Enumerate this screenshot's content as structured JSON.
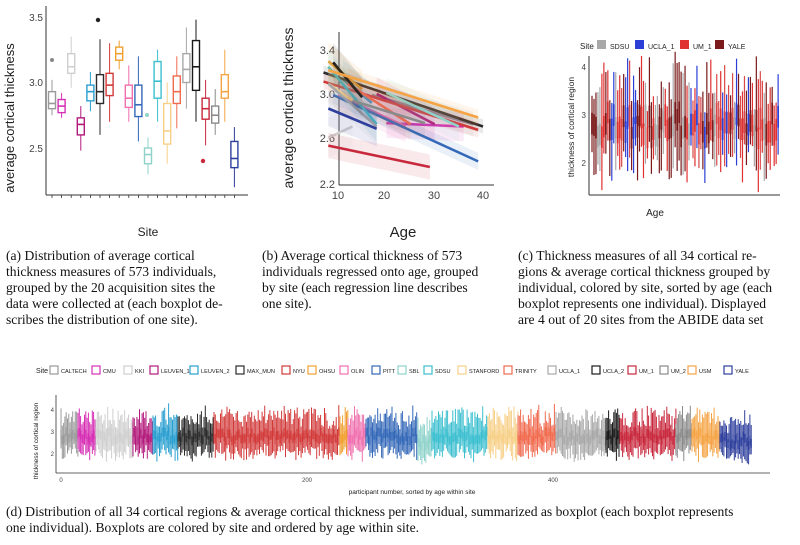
{
  "panel_a": {
    "ylabel": "average cortical thickness",
    "xlabel": "Site",
    "yticks": [
      "2.5",
      "3.0",
      "3.5"
    ],
    "caption": [
      "(a) Distribution of average cortical",
      "thickness measures of 573 individuals,",
      "grouped by the 20 acquisition sites the",
      "data were collected at (each boxplot de-",
      "scribes the distribution of one site)."
    ]
  },
  "panel_b": {
    "ylabel": "average cortical thickness",
    "xlabel": "Age",
    "yticks": [
      "2.2",
      "2.6",
      "3.0",
      "3.4"
    ],
    "xticks": [
      "10",
      "20",
      "30",
      "40"
    ],
    "caption": [
      "(b) Average cortical thickness of 573",
      "individuals regressed onto age, grouped",
      "by site (each regression line describes",
      "one site)."
    ]
  },
  "panel_c": {
    "ylabel": "thickness of cortical region",
    "xlabel": "Age",
    "yticks": [
      "2",
      "3",
      "4"
    ],
    "legend_title": "Site",
    "legend": [
      "SDSU",
      "UCLA_1",
      "UM_1",
      "YALE"
    ],
    "caption": [
      "(c) Thickness measures of all 34 cortical re-",
      "gions & average cortical thickness grouped by",
      "individual, colored by site, sorted by age (each",
      "boxplot represents one individual). Displayed",
      "are 4 out of 20 sites from the ABIDE data set"
    ]
  },
  "panel_d": {
    "ylabel": "thickness of cortical region",
    "xlabel": "participant number, sorted by age within site",
    "yticks": [
      "2",
      "3",
      "4"
    ],
    "xticks": [
      "0",
      "200",
      "400"
    ],
    "legend_title": "Site",
    "legend": [
      "CALTECH",
      "CMU",
      "KKI",
      "LEUVEN_1",
      "LEUVEN_2",
      "MAX_MUN",
      "NYU",
      "OHSU",
      "OLIN",
      "PITT",
      "SBL",
      "SDSU",
      "STANFORD",
      "TRINITY",
      "UCLA_1",
      "UCLA_2",
      "UM_1",
      "UM_2",
      "USM",
      "YALE"
    ],
    "caption": [
      "(d) Distribution of all 34 cortical regions & average cortical thickness per individual, summarized as boxplot (each boxplot represents",
      "one individual). Boxplots are colored by site and ordered by age within site."
    ]
  },
  "colors": {
    "CALTECH": "#9a9a9a",
    "CMU": "#d62fb4",
    "KKI": "#cfcfcf",
    "LEUVEN_1": "#b2197b",
    "LEUVEN_2": "#2a9fd0",
    "MAX_MUN": "#2b2b2b",
    "NYU": "#d23a3a",
    "OHSU": "#f0a030",
    "OLIN": "#f06fae",
    "PITT": "#3468b8",
    "SBL": "#8fd3cb",
    "SDSU": "#3cbfcf",
    "STANFORD": "#f7d088",
    "TRINITY": "#f06a4e",
    "UCLA_1": "#a8a8a8",
    "UCLA_2": "#1a1a1a",
    "UM_1": "#c8283c",
    "UM_2": "#8a8a8a",
    "USM": "#f5a445",
    "YALE": "#2e3f9c"
  },
  "chart_data": [
    {
      "type": "box",
      "ylabel": "average cortical thickness",
      "xlabel": "Site",
      "ylim": [
        2.2,
        3.55
      ],
      "boxes": [
        {
          "site": "CALTECH",
          "q1": 2.8,
          "median": 2.84,
          "q3": 2.93,
          "lo": 2.75,
          "hi": 3.02
        },
        {
          "site": "CMU",
          "q1": 2.77,
          "median": 2.82,
          "q3": 2.87,
          "lo": 2.73,
          "hi": 2.92
        },
        {
          "site": "KKI",
          "q1": 3.07,
          "median": 3.12,
          "q3": 3.22,
          "lo": 2.96,
          "hi": 3.35
        },
        {
          "site": "LEUVEN_1",
          "q1": 2.6,
          "median": 2.68,
          "q3": 2.73,
          "lo": 2.48,
          "hi": 2.82
        },
        {
          "site": "LEUVEN_2",
          "q1": 2.86,
          "median": 2.93,
          "q3": 2.98,
          "lo": 2.78,
          "hi": 3.08
        },
        {
          "site": "MAX_MUN",
          "q1": 2.84,
          "median": 2.93,
          "q3": 3.06,
          "lo": 2.6,
          "hi": 3.33
        },
        {
          "site": "NYU",
          "q1": 2.9,
          "median": 2.98,
          "q3": 3.07,
          "lo": 2.7,
          "hi": 3.3
        },
        {
          "site": "OHSU",
          "q1": 3.17,
          "median": 3.22,
          "q3": 3.27,
          "lo": 3.1,
          "hi": 3.32
        },
        {
          "site": "OLIN",
          "q1": 2.81,
          "median": 2.88,
          "q3": 2.98,
          "lo": 2.7,
          "hi": 3.13
        },
        {
          "site": "PITT",
          "q1": 2.74,
          "median": 2.83,
          "q3": 2.98,
          "lo": 2.55,
          "hi": 3.2
        },
        {
          "site": "SBL",
          "q1": 2.38,
          "median": 2.45,
          "q3": 2.5,
          "lo": 2.3,
          "hi": 2.58
        },
        {
          "site": "SDSU",
          "q1": 2.88,
          "median": 3.01,
          "q3": 3.16,
          "lo": 2.7,
          "hi": 3.25
        },
        {
          "site": "STANFORD",
          "q1": 2.53,
          "median": 2.63,
          "q3": 2.84,
          "lo": 2.38,
          "hi": 3.0
        },
        {
          "site": "TRINITY",
          "q1": 2.84,
          "median": 2.93,
          "q3": 3.05,
          "lo": 2.65,
          "hi": 3.2
        },
        {
          "site": "UCLA_1",
          "q1": 3.0,
          "median": 3.1,
          "q3": 3.22,
          "lo": 2.8,
          "hi": 3.42
        },
        {
          "site": "UCLA_2",
          "q1": 2.94,
          "median": 3.12,
          "q3": 3.32,
          "lo": 2.7,
          "hi": 3.48
        },
        {
          "site": "UM_1",
          "q1": 2.72,
          "median": 2.8,
          "q3": 2.88,
          "lo": 2.52,
          "hi": 3.02
        },
        {
          "site": "UM_2",
          "q1": 2.69,
          "median": 2.75,
          "q3": 2.82,
          "lo": 2.6,
          "hi": 2.95
        },
        {
          "site": "USM",
          "q1": 2.88,
          "median": 2.93,
          "q3": 3.06,
          "lo": 2.7,
          "hi": 3.25
        },
        {
          "site": "YALE",
          "q1": 2.35,
          "median": 2.42,
          "q3": 2.55,
          "lo": 2.2,
          "hi": 2.66
        }
      ]
    },
    {
      "type": "line",
      "xlabel": "Age",
      "ylabel": "average cortical thickness",
      "xlim": [
        6,
        41
      ],
      "ylim": [
        2.2,
        3.55
      ],
      "series": [
        {
          "site": "CALTECH",
          "x": [
            17,
            38
          ],
          "y": [
            3.0,
            2.74
          ]
        },
        {
          "site": "CMU",
          "x": [
            20,
            36
          ],
          "y": [
            2.75,
            2.72
          ]
        },
        {
          "site": "KKI",
          "x": [
            8,
            13
          ],
          "y": [
            2.62,
            2.72
          ]
        },
        {
          "site": "LEUVEN_1",
          "x": [
            18,
            30
          ],
          "y": [
            3.01,
            2.74
          ]
        },
        {
          "site": "LEUVEN_2",
          "x": [
            11,
            17
          ],
          "y": [
            3.14,
            2.93
          ]
        },
        {
          "site": "MAX_MUN",
          "x": [
            7,
            40
          ],
          "y": [
            3.2,
            2.72
          ]
        },
        {
          "site": "NYU",
          "x": [
            7,
            39
          ],
          "y": [
            3.12,
            2.69
          ]
        },
        {
          "site": "OHSU",
          "x": [
            8,
            15
          ],
          "y": [
            3.3,
            3.05
          ]
        },
        {
          "site": "OLIN",
          "x": [
            10,
            24
          ],
          "y": [
            3.0,
            2.72
          ]
        },
        {
          "site": "PITT",
          "x": [
            9,
            39
          ],
          "y": [
            3.0,
            2.41
          ]
        },
        {
          "site": "SBL",
          "x": [
            20,
            35
          ],
          "y": [
            3.02,
            2.72
          ]
        },
        {
          "site": "SDSU",
          "x": [
            8,
            18
          ],
          "y": [
            3.25,
            2.74
          ]
        },
        {
          "site": "STANFORD",
          "x": [
            8,
            13
          ],
          "y": [
            3.1,
            2.95
          ]
        },
        {
          "site": "TRINITY",
          "x": [
            12,
            25
          ],
          "y": [
            3.1,
            2.74
          ]
        },
        {
          "site": "UCLA_1",
          "x": [
            8,
            18
          ],
          "y": [
            3.1,
            2.72
          ]
        },
        {
          "site": "UCLA_2",
          "x": [
            9,
            15
          ],
          "y": [
            3.29,
            2.98
          ]
        },
        {
          "site": "UM_1",
          "x": [
            8,
            29
          ],
          "y": [
            2.55,
            2.36
          ]
        },
        {
          "site": "UM_2",
          "x": [
            13,
            28
          ],
          "y": [
            2.95,
            2.75
          ]
        },
        {
          "site": "USM",
          "x": [
            8,
            39
          ],
          "y": [
            3.22,
            2.8
          ]
        },
        {
          "site": "YALE",
          "x": [
            8,
            18
          ],
          "y": [
            2.88,
            2.7
          ]
        }
      ]
    }
  ]
}
